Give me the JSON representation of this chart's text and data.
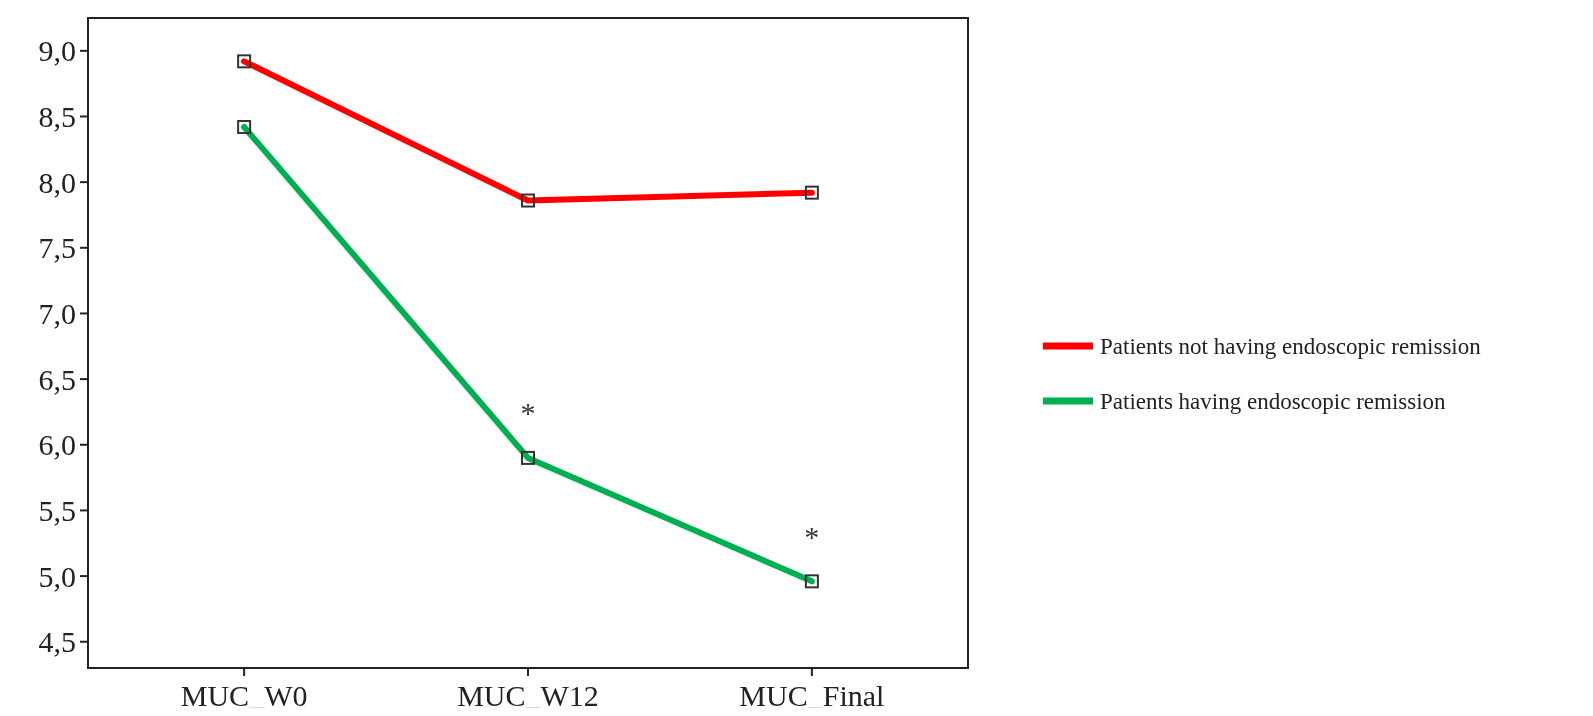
{
  "chart_data": {
    "type": "line",
    "categories": [
      "MUC_W0",
      "MUC_W12",
      "MUC_Final"
    ],
    "series": [
      {
        "name": "Patients not having endoscopic remission",
        "color": "#ff0000",
        "values": [
          8.92,
          7.86,
          7.92
        ]
      },
      {
        "name": "Patients having endoscopic remission",
        "color": "#00b050",
        "values": [
          8.42,
          5.9,
          4.96
        ]
      }
    ],
    "ylim": [
      4.3,
      9.25
    ],
    "yticks": [
      {
        "value": 4.5,
        "label": "4,5"
      },
      {
        "value": 5,
        "label": "5,0"
      },
      {
        "value": 5.5,
        "label": "5,5"
      },
      {
        "value": 6,
        "label": "6,0"
      },
      {
        "value": 6.5,
        "label": "6,5"
      },
      {
        "value": 7,
        "label": "7,0"
      },
      {
        "value": 7.5,
        "label": "7,5"
      },
      {
        "value": 8,
        "label": "8,0"
      },
      {
        "value": 8.5,
        "label": "8,5"
      },
      {
        "value": 9,
        "label": "9,0"
      }
    ],
    "annotations": [
      "*",
      "*"
    ],
    "marker": "square",
    "line_style": "solid",
    "grid": false,
    "legend": "right"
  }
}
